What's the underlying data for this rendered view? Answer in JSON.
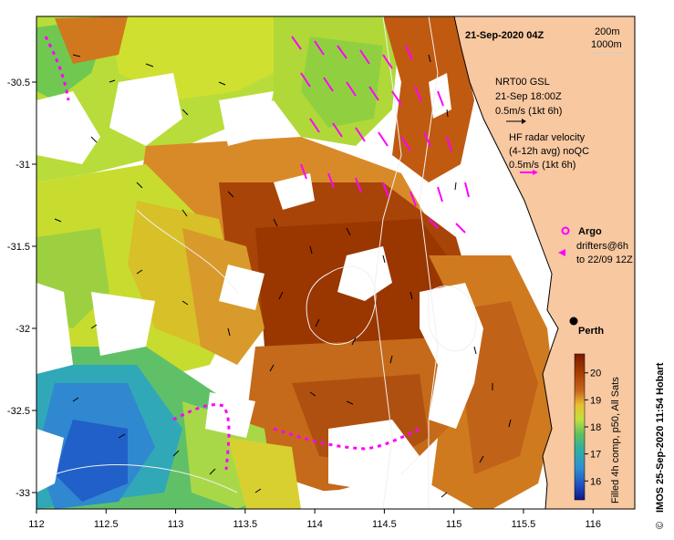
{
  "map": {
    "date_title": "21-Sep-2020 04Z",
    "isobath_labels": [
      "200m",
      "1000m"
    ],
    "x_ticks": [
      "112",
      "112.5",
      "113",
      "113.5",
      "114",
      "114.5",
      "115",
      "115.5",
      "116"
    ],
    "y_ticks": [
      "-30.5",
      "-31",
      "-31.5",
      "-32",
      "-32.5",
      "-33"
    ],
    "x_range": [
      112,
      116.3
    ],
    "y_range": [
      -33.1,
      -30.1
    ],
    "city": {
      "name": "Perth",
      "lon": 115.86,
      "lat": -31.95
    },
    "credit": "IMOS 25-Sep-2020 11:54 Hobart",
    "copyright_symbol": "©"
  },
  "legend": {
    "gsl_lines": [
      "NRT00 GSL",
      "21-Sep 18:00Z",
      "0.5m/s (1kt 6h)"
    ],
    "radar_lines": [
      "HF radar velocity",
      "(4-12h avg) noQC",
      "0.5m/s (1kt 6h)"
    ],
    "argo_label": "Argo",
    "drifter_lines": [
      "drifters@6h",
      "to 22/09 12Z"
    ]
  },
  "colorbar": {
    "label": "Filled 4h comp, p50, All Sats",
    "ticks": [
      "20",
      "19",
      "18",
      "17",
      "16"
    ],
    "range": [
      15.3,
      20.7
    ],
    "colors": [
      "#7a1a00",
      "#a63a00",
      "#c8641e",
      "#d8922a",
      "#e8c030",
      "#d8e030",
      "#a0d850",
      "#60c060",
      "#30b0a0",
      "#3090d0",
      "#2050c0",
      "#101880"
    ]
  },
  "palette": {
    "land": "#f8c8a0",
    "vector_black": "#000000",
    "vector_magenta": "#ff00ff"
  }
}
